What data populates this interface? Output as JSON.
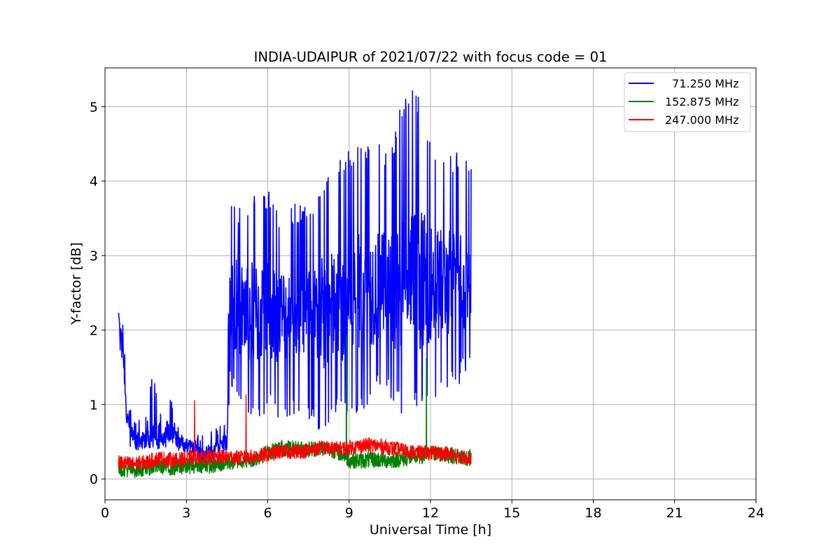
{
  "chart_data": {
    "type": "line",
    "title": "INDIA-UDAIPUR of 2021/07/22 with focus code = 01",
    "xlabel": "Universal Time [h]",
    "ylabel": "Y-factor [dB]",
    "xlim": [
      0,
      24
    ],
    "ylim": [
      -0.28,
      5.52
    ],
    "xticks": [
      0,
      3,
      6,
      9,
      12,
      15,
      18,
      21,
      24
    ],
    "xtick_labels": [
      "0",
      "3",
      "6",
      "9",
      "12",
      "15",
      "18",
      "21",
      "24"
    ],
    "yticks": [
      0,
      1,
      2,
      3,
      4,
      5
    ],
    "ytick_labels": [
      "0",
      "1",
      "2",
      "3",
      "4",
      "5"
    ],
    "grid": true,
    "legend_position": "top-right",
    "series": [
      {
        "name": "  71.250 MHz",
        "color": "#0000ff",
        "x": [
          0.5,
          0.6,
          0.7,
          0.8,
          1.0,
          1.2,
          1.5,
          1.8,
          2.0,
          2.3,
          2.6,
          3.0,
          3.3,
          3.6,
          3.9,
          4.2,
          4.5,
          4.6,
          5.0,
          5.5,
          6.0,
          6.5,
          7.0,
          7.5,
          8.0,
          8.5,
          9.0,
          9.5,
          10.0,
          10.5,
          11.0,
          11.5,
          12.0,
          12.5,
          13.0,
          13.5
        ],
        "y": [
          2.1,
          1.9,
          1.5,
          0.8,
          0.6,
          0.45,
          0.5,
          0.55,
          0.5,
          0.6,
          0.55,
          0.45,
          0.4,
          0.3,
          0.35,
          0.4,
          0.5,
          2.4,
          2.3,
          2.2,
          2.3,
          2.2,
          2.25,
          2.2,
          2.2,
          2.3,
          2.4,
          2.5,
          2.6,
          2.55,
          2.6,
          2.7,
          2.65,
          2.6,
          2.7,
          2.6
        ],
        "min_envelope": [
          1.8,
          1.4,
          1.1,
          0.5,
          0.35,
          0.3,
          0.35,
          0.45,
          0.4,
          0.45,
          0.4,
          0.3,
          0.2,
          0.05,
          0.2,
          0.25,
          0.3,
          1.2,
          0.8,
          0.7,
          0.9,
          0.7,
          0.8,
          0.75,
          0.6,
          0.8,
          0.7,
          0.9,
          1.2,
          1.1,
          0.8,
          0.9,
          1.0,
          1.1,
          1.2,
          1.6
        ],
        "max_envelope": [
          2.35,
          2.3,
          2.0,
          1.0,
          0.9,
          0.85,
          0.85,
          1.6,
          0.8,
          1.3,
          0.9,
          0.75,
          0.6,
          0.7,
          0.7,
          0.7,
          0.8,
          3.7,
          3.7,
          3.95,
          3.9,
          3.6,
          3.7,
          3.7,
          4.1,
          4.3,
          4.5,
          4.5,
          4.6,
          4.3,
          5.2,
          5.25,
          4.6,
          4.4,
          4.4,
          4.2
        ]
      },
      {
        "name": "152.875 MHz",
        "color": "#008000",
        "x": [
          0.5,
          1.0,
          1.5,
          2.0,
          2.5,
          3.0,
          3.5,
          4.0,
          4.5,
          5.0,
          5.5,
          6.0,
          6.5,
          7.0,
          7.5,
          8.0,
          8.5,
          8.9,
          9.0,
          9.5,
          10.0,
          10.5,
          11.0,
          11.5,
          11.9,
          12.0,
          12.5,
          13.0,
          13.5
        ],
        "y": [
          0.15,
          0.12,
          0.15,
          0.18,
          0.15,
          0.17,
          0.2,
          0.18,
          0.22,
          0.25,
          0.27,
          0.35,
          0.42,
          0.4,
          0.4,
          0.42,
          0.38,
          0.3,
          0.25,
          0.25,
          0.26,
          0.25,
          0.27,
          0.3,
          0.32,
          0.35,
          0.33,
          0.3,
          0.28
        ],
        "spikes": [
          [
            8.9,
            1.92
          ],
          [
            11.85,
            1.62
          ]
        ]
      },
      {
        "name": "247.000 MHz",
        "color": "#ff0000",
        "x": [
          0.5,
          1.0,
          1.5,
          2.0,
          2.5,
          3.0,
          3.5,
          4.0,
          4.5,
          5.0,
          5.5,
          6.0,
          6.5,
          7.0,
          7.5,
          8.0,
          8.5,
          9.0,
          9.5,
          10.0,
          10.5,
          11.0,
          11.5,
          12.0,
          12.5,
          13.0,
          13.5
        ],
        "y": [
          0.22,
          0.2,
          0.22,
          0.28,
          0.25,
          0.27,
          0.3,
          0.28,
          0.3,
          0.28,
          0.3,
          0.33,
          0.37,
          0.37,
          0.38,
          0.42,
          0.4,
          0.42,
          0.45,
          0.45,
          0.42,
          0.38,
          0.35,
          0.35,
          0.34,
          0.3,
          0.28
        ],
        "spikes": [
          [
            3.3,
            1.05
          ],
          [
            5.2,
            1.13
          ]
        ]
      }
    ]
  }
}
